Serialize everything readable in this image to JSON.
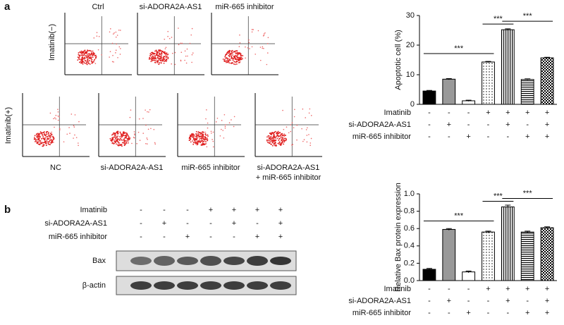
{
  "panel_labels": [
    "a",
    "b"
  ],
  "flow": {
    "row_labels": [
      "Imatinib(−)",
      "Imatinib(+)"
    ],
    "top": [
      "Ctrl",
      "si-ADORA2A-AS1",
      "miR-665 inhibitor"
    ],
    "bottom": [
      [
        "NC"
      ],
      [
        "si-ADORA2A-AS1"
      ],
      [
        "miR-665 inhibitor"
      ],
      [
        "si-ADORA2A-AS1",
        "+ miR-665 inhibitor"
      ]
    ]
  },
  "blot": {
    "conditions": [
      {
        "label": "Imatinib",
        "signs": [
          "-",
          "-",
          "-",
          "+",
          "+",
          "+",
          "+"
        ]
      },
      {
        "label": "si-ADORA2A-AS1",
        "signs": [
          "-",
          "+",
          "-",
          "-",
          "+",
          "-",
          "+"
        ]
      },
      {
        "label": "miR-665 inhibitor",
        "signs": [
          "-",
          "-",
          "+",
          "-",
          "-",
          "+",
          "+"
        ]
      }
    ],
    "bands": [
      "Bax",
      "β-actin"
    ]
  },
  "chart_data": [
    {
      "type": "bar",
      "y_label": "Apoptotic cell (%)",
      "values": [
        4.5,
        8.5,
        1.2,
        14.3,
        25.2,
        8.4,
        15.7
      ],
      "errors": [
        0.2,
        0.2,
        0.2,
        0.2,
        0.3,
        0.2,
        0.2
      ],
      "ylim": [
        0,
        30
      ],
      "yticks": [
        0,
        10,
        20,
        30
      ],
      "annotations": [
        {
          "text": "***",
          "from": 0,
          "to": 3
        },
        {
          "text": "***",
          "from": 3,
          "to": 4
        },
        {
          "text": "***",
          "from": 4,
          "to": 6
        }
      ],
      "conditions": [
        {
          "label": "Imatinib",
          "signs": [
            "-",
            "-",
            "-",
            "+",
            "+",
            "+",
            "+"
          ]
        },
        {
          "label": "si-ADORA2A-AS1",
          "signs": [
            "-",
            "+",
            "-",
            "-",
            "+",
            "-",
            "+"
          ]
        },
        {
          "label": "miR-665 inhibitor",
          "signs": [
            "-",
            "-",
            "+",
            "-",
            "-",
            "+",
            "+"
          ]
        }
      ]
    },
    {
      "type": "bar",
      "y_label": "Relative Bax protein expression",
      "values": [
        0.13,
        0.59,
        0.1,
        0.56,
        0.85,
        0.56,
        0.61
      ],
      "errors": [
        0.01,
        0.01,
        0.01,
        0.01,
        0.02,
        0.01,
        0.01
      ],
      "ylim": [
        0,
        1
      ],
      "yticks": [
        {
          "value": 0,
          "label": "0.0"
        },
        0.2,
        0.4,
        0.6,
        0.8,
        {
          "value": 1,
          "label": "1.0"
        }
      ],
      "annotations": [
        {
          "text": "***",
          "from": 0,
          "to": 3
        },
        {
          "text": "***",
          "from": 3,
          "to": 4
        },
        {
          "text": "***",
          "from": 4,
          "to": 6
        }
      ],
      "conditions": [
        {
          "label": "Imatinib",
          "signs": [
            "-",
            "-",
            "-",
            "+",
            "+",
            "+",
            "+"
          ]
        },
        {
          "label": "si-ADORA2A-AS1",
          "signs": [
            "-",
            "+",
            "-",
            "-",
            "+",
            "-",
            "+"
          ]
        },
        {
          "label": "miR-665 inhibitor",
          "signs": [
            "-",
            "-",
            "+",
            "-",
            "-",
            "+",
            "+"
          ]
        }
      ]
    }
  ]
}
